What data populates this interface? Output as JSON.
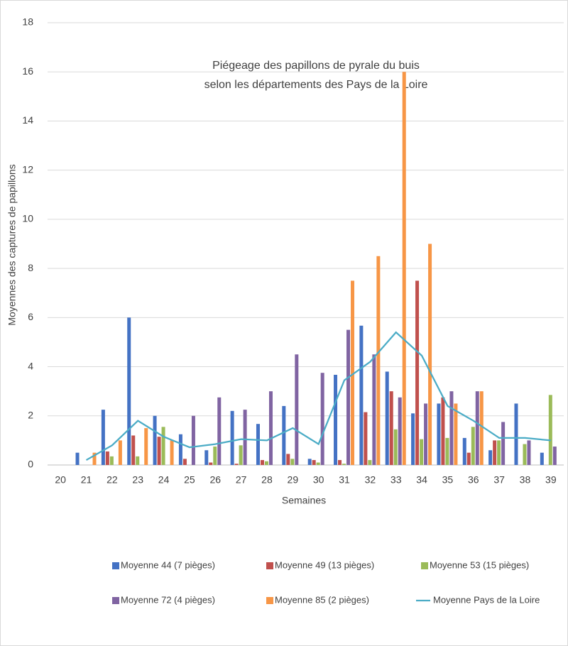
{
  "chart_data": {
    "type": "bar",
    "title": "Piégeage des papillons de pyrale du buis",
    "subtitle": "selon les départements des Pays de la Loire",
    "x_label": "Semaines",
    "y_label": "Moyennes des captures de papillons",
    "categories": [
      "20",
      "21",
      "22",
      "23",
      "24",
      "25",
      "26",
      "27",
      "28",
      "29",
      "30",
      "31",
      "32",
      "33",
      "34",
      "35",
      "36",
      "37",
      "38",
      "39"
    ],
    "ylim": [
      0,
      18
    ],
    "yticks": [
      0,
      2,
      4,
      6,
      8,
      10,
      12,
      14,
      16,
      18
    ],
    "grid": true,
    "series": [
      {
        "name": "Moyenne 44 (7 pièges)",
        "color": "#4472c4",
        "type": "bar",
        "values": [
          null,
          0.5,
          2.25,
          6,
          2,
          1.25,
          0.6,
          2.2,
          1.67,
          2.4,
          0.25,
          3.67,
          5.67,
          3.8,
          2.1,
          2.5,
          1.1,
          0.6,
          2.5,
          0.5
        ]
      },
      {
        "name": "Moyenne 49 (13 pièges)",
        "color": "#c0504d",
        "type": "bar",
        "values": [
          null,
          0,
          0.55,
          1.2,
          1.15,
          0.25,
          0.1,
          0.05,
          0.2,
          0.45,
          0.2,
          0.2,
          2.15,
          3,
          7.5,
          2.75,
          0.5,
          1,
          0,
          0
        ]
      },
      {
        "name": "Moyenne 53 (15 pièges)",
        "color": "#9bbb59",
        "type": "bar",
        "values": [
          null,
          0,
          0.35,
          0.35,
          1.55,
          0,
          0.75,
          0.8,
          0.15,
          0.25,
          0.1,
          0.05,
          0.2,
          1.45,
          1.05,
          1.1,
          1.55,
          1,
          0.85,
          2.85
        ]
      },
      {
        "name": "Moyenne 72 (4 pièges)",
        "color": "#8064a2",
        "type": "bar",
        "values": [
          null,
          0,
          0,
          0,
          0,
          2,
          2.75,
          2.25,
          3,
          4.5,
          3.75,
          5.5,
          4.5,
          2.75,
          2.5,
          3,
          3,
          1.75,
          1,
          0.75
        ]
      },
      {
        "name": "Moyenne 85 (2 pièges)",
        "color": "#f79646",
        "type": "bar",
        "values": [
          null,
          0.5,
          1,
          1.5,
          1,
          0,
          0,
          0,
          0,
          0,
          0,
          7.5,
          8.5,
          16,
          9,
          2.5,
          3,
          0,
          0,
          0
        ]
      },
      {
        "name": "Moyenne Pays de la Loire",
        "color": "#4bacc6",
        "type": "line",
        "values": [
          null,
          0.2,
          0.8,
          1.8,
          1.15,
          0.72,
          0.85,
          1.05,
          1,
          1.5,
          0.85,
          3.45,
          4.2,
          5.4,
          4.45,
          2.4,
          1.8,
          1.1,
          1.1,
          1
        ]
      }
    ]
  }
}
